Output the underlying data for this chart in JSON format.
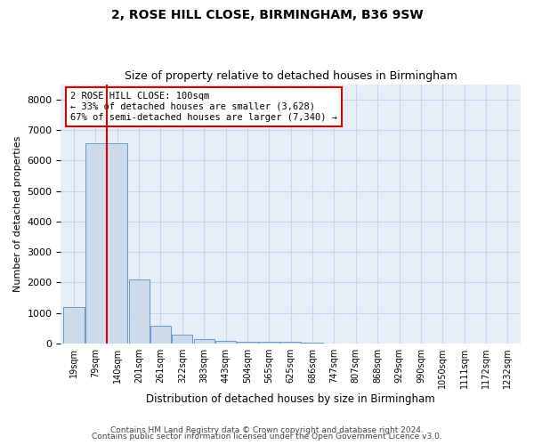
{
  "title1": "2, ROSE HILL CLOSE, BIRMINGHAM, B36 9SW",
  "title2": "Size of property relative to detached houses in Birmingham",
  "xlabel": "Distribution of detached houses by size in Birmingham",
  "ylabel": "Number of detached properties",
  "footer1": "Contains HM Land Registry data © Crown copyright and database right 2024.",
  "footer2": "Contains public sector information licensed under the Open Government Licence v3.0.",
  "bar_color": "#cddaeb",
  "bar_edge_color": "#6699cc",
  "categories": [
    "19sqm",
    "79sqm",
    "140sqm",
    "201sqm",
    "261sqm",
    "322sqm",
    "383sqm",
    "443sqm",
    "504sqm",
    "565sqm",
    "625sqm",
    "686sqm",
    "747sqm",
    "807sqm",
    "868sqm",
    "929sqm",
    "990sqm",
    "1050sqm",
    "1111sqm",
    "1172sqm",
    "1232sqm"
  ],
  "values": [
    1200,
    6550,
    6550,
    2100,
    580,
    290,
    145,
    100,
    75,
    58,
    48,
    38,
    10,
    5,
    3,
    2,
    1,
    1,
    0,
    0,
    0
  ],
  "property_line_color": "#cc0000",
  "property_line_x": 1.5,
  "ylim": [
    0,
    8500
  ],
  "yticks": [
    0,
    1000,
    2000,
    3000,
    4000,
    5000,
    6000,
    7000,
    8000
  ],
  "annotation_line1": "2 ROSE HILL CLOSE: 100sqm",
  "annotation_line2": "← 33% of detached houses are smaller (3,628)",
  "annotation_line3": "67% of semi-detached houses are larger (7,340) →",
  "grid_color": "#c8d4e8",
  "background_color": "#e8eef8"
}
